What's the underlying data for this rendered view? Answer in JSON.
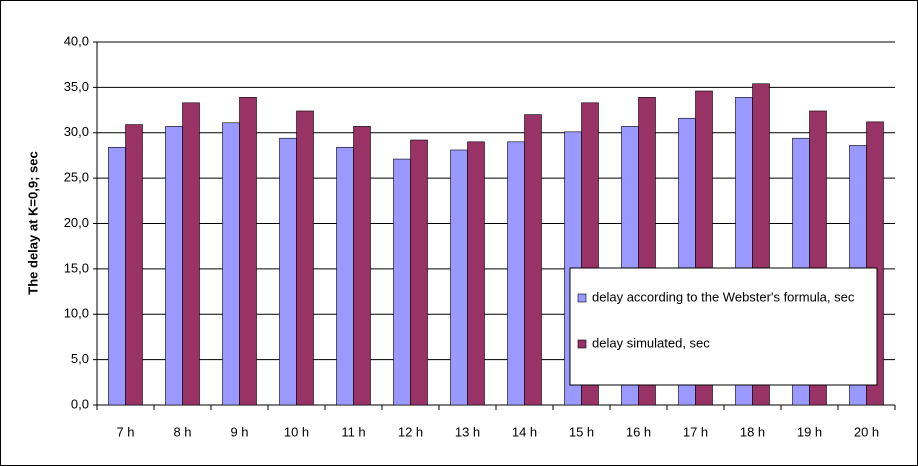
{
  "chart_data": {
    "type": "bar",
    "y_label": "The delay at K=0,9; sec",
    "categories": [
      "7 h",
      "8 h",
      "9 h",
      "10 h",
      "11 h",
      "12 h",
      "13 h",
      "14 h",
      "15 h",
      "16 h",
      "17 h",
      "18 h",
      "19 h",
      "20 h"
    ],
    "series": [
      {
        "name": "delay according to the Webster's formula, sec",
        "color": "#9999ff",
        "values": [
          28.4,
          30.7,
          31.1,
          29.4,
          28.4,
          27.1,
          28.1,
          29.0,
          30.1,
          30.7,
          31.6,
          33.9,
          29.4,
          28.6
        ]
      },
      {
        "name": "delay simulated, sec",
        "color": "#993366",
        "values": [
          30.9,
          33.3,
          33.9,
          32.4,
          30.7,
          29.2,
          29.0,
          32.0,
          33.3,
          33.9,
          34.6,
          35.4,
          32.4,
          31.2
        ]
      }
    ],
    "ylim": [
      0,
      40
    ],
    "yticks": [
      {
        "value": 0,
        "label": "0,0"
      },
      {
        "value": 5,
        "label": "5,0"
      },
      {
        "value": 10,
        "label": "10,0"
      },
      {
        "value": 15,
        "label": "15,0"
      },
      {
        "value": 20,
        "label": "20,0"
      },
      {
        "value": 25,
        "label": "25,0"
      },
      {
        "value": 30,
        "label": "30,0"
      },
      {
        "value": 35,
        "label": "35,0"
      },
      {
        "value": 40,
        "label": "40,0"
      }
    ],
    "grid": true,
    "legend": "lower right"
  }
}
